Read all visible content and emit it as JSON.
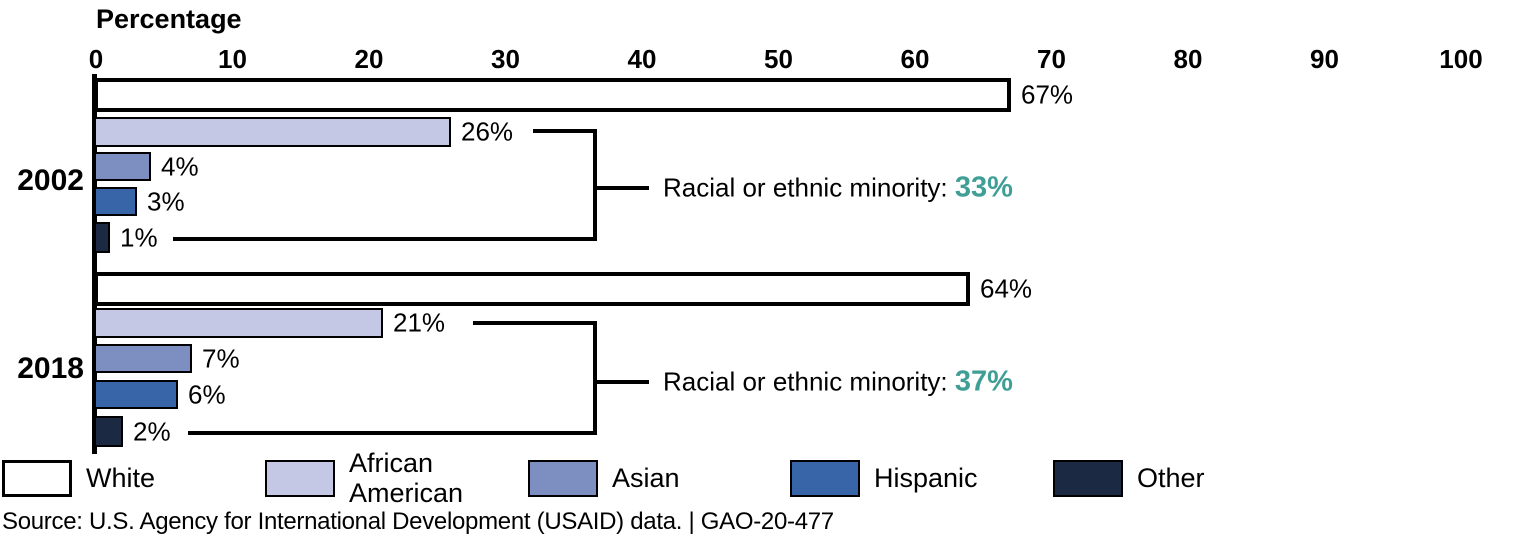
{
  "chart_data": {
    "type": "bar",
    "orientation": "horizontal",
    "axis_title": "Percentage",
    "x_ticks": [
      0,
      10,
      20,
      30,
      40,
      50,
      60,
      70,
      80,
      90,
      100
    ],
    "xlim": [
      0,
      100
    ],
    "grid": false,
    "legend_position": "bottom",
    "categories": [
      "White",
      "African American",
      "Asian",
      "Hispanic",
      "Other"
    ],
    "category_colors": [
      "#ffffff",
      "#c5c8e4",
      "#7d8ec1",
      "#3765a7",
      "#1c2942"
    ],
    "groups": [
      {
        "label": "2002",
        "values": [
          67,
          26,
          4,
          3,
          1
        ],
        "value_labels": [
          "67%",
          "26%",
          "4%",
          "3%",
          "1%"
        ],
        "annotation": {
          "text": "Racial or ethnic minority: ",
          "value": "33%"
        }
      },
      {
        "label": "2018",
        "values": [
          64,
          21,
          7,
          6,
          2
        ],
        "value_labels": [
          "64%",
          "21%",
          "7%",
          "6%",
          "2%"
        ],
        "annotation": {
          "text": "Racial or ethnic minority: ",
          "value": "37%"
        }
      }
    ],
    "legend": [
      "White",
      "African American",
      "Asian",
      "Hispanic",
      "Other"
    ],
    "annotation_value_color": "#3f9e95"
  },
  "source_note": "Source: U.S. Agency for International Development (USAID) data.  |  GAO-20-477",
  "colors": {
    "accent_teal": "#3f9e95",
    "bar_border": "#000000",
    "text": "#000000",
    "background": "#ffffff"
  }
}
